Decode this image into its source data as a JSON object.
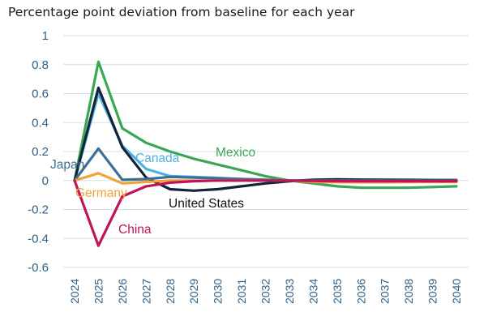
{
  "chart_data": {
    "type": "line",
    "title": "Percentage point deviation from baseline for each year",
    "xlabel": "",
    "ylabel": "",
    "x": [
      "2024",
      "2025",
      "2026",
      "2027",
      "2028",
      "2029",
      "2030",
      "2031",
      "2032",
      "2033",
      "2034",
      "2035",
      "2036",
      "2037",
      "2038",
      "2039",
      "2040"
    ],
    "ylim": [
      -0.6,
      1.0
    ],
    "yticks": [
      -0.6,
      -0.4,
      -0.2,
      0,
      0.2,
      0.4,
      0.6,
      0.8,
      1
    ],
    "ytick_labels": [
      "-0.6",
      "-0.4",
      "-0.2",
      "0",
      "0.2",
      "0.4",
      "0.6",
      "0.8",
      "1"
    ],
    "grid": "horizontal",
    "series": [
      {
        "name": "Mexico",
        "color": "#3aa655",
        "values": [
          0,
          0.82,
          0.36,
          0.26,
          0.2,
          0.15,
          0.11,
          0.07,
          0.03,
          0.0,
          -0.02,
          -0.04,
          -0.05,
          -0.05,
          -0.05,
          -0.045,
          -0.04
        ]
      },
      {
        "name": "Canada",
        "color": "#4fb0e0",
        "values": [
          0,
          0.6,
          0.24,
          0.08,
          0.03,
          0.025,
          0.018,
          0.01,
          0.005,
          0.0,
          -0.003,
          -0.005,
          -0.006,
          -0.006,
          -0.006,
          -0.005,
          -0.005
        ]
      },
      {
        "name": "United States",
        "color": "#13243a",
        "values": [
          0,
          0.64,
          0.23,
          0.02,
          -0.06,
          -0.07,
          -0.06,
          -0.04,
          -0.02,
          -0.005,
          0.005,
          0.008,
          0.006,
          0.005,
          0.004,
          0.003,
          0.003
        ]
      },
      {
        "name": "Japan",
        "color": "#3d6f96",
        "values": [
          0,
          0.22,
          0.005,
          0.01,
          0.025,
          0.02,
          0.015,
          0.01,
          0.005,
          0.0,
          0.0,
          0.0,
          0.0,
          0.0,
          0.0,
          0.0,
          0.0
        ]
      },
      {
        "name": "Germany",
        "color": "#f0a33a",
        "values": [
          0,
          0.05,
          -0.02,
          -0.01,
          0.0,
          0.0,
          0.0,
          0.0,
          0.0,
          0.0,
          -0.01,
          -0.012,
          -0.012,
          -0.012,
          -0.011,
          -0.01,
          -0.01
        ]
      },
      {
        "name": "China",
        "color": "#c0145a",
        "values": [
          0,
          -0.45,
          -0.11,
          -0.04,
          -0.015,
          -0.005,
          0.0,
          0.0,
          0.0,
          0.0,
          -0.003,
          -0.004,
          -0.005,
          -0.005,
          -0.005,
          -0.005,
          -0.005
        ]
      }
    ]
  }
}
